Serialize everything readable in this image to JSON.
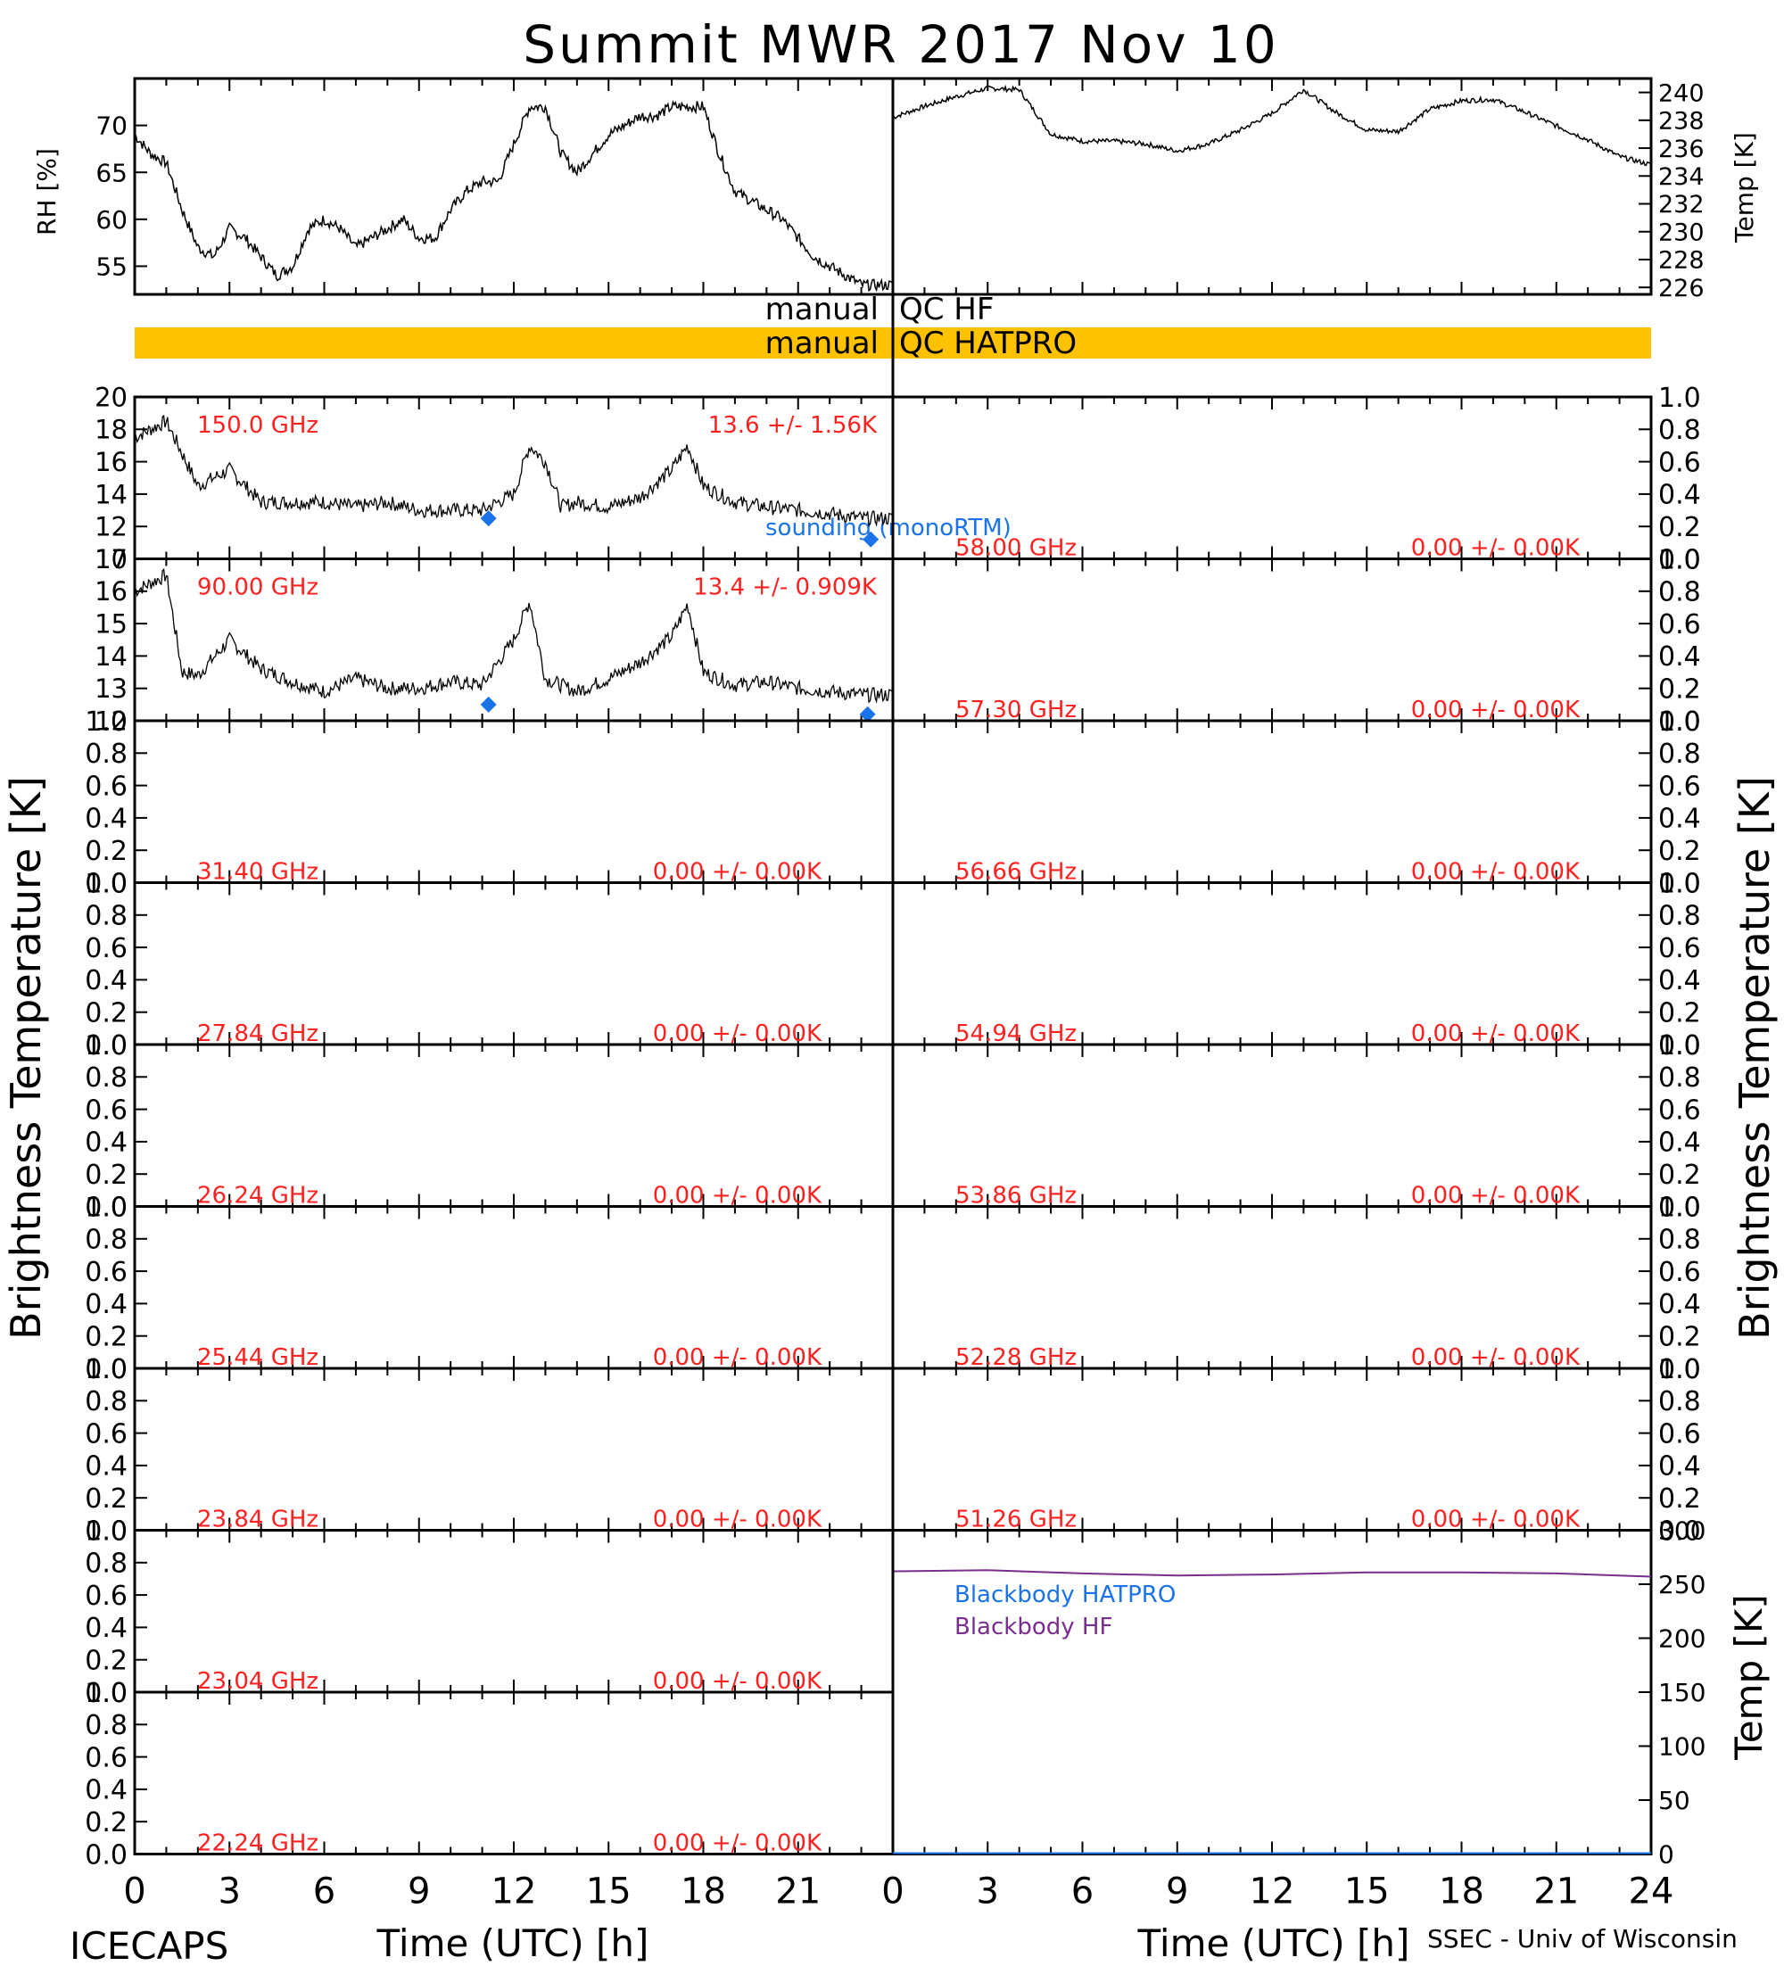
{
  "figure": {
    "title": "Summit MWR 2017 Nov 10",
    "footer_left": "ICECAPS",
    "footer_right": "SSEC - Univ of Wisconsin",
    "xlabel": "Time (UTC) [h]",
    "x_ticks": [
      "0",
      "3",
      "6",
      "9",
      "12",
      "15",
      "18",
      "21",
      "0",
      "3",
      "6",
      "9",
      "12",
      "15",
      "18",
      "21",
      "24"
    ],
    "bt_label": "Brightness Temperature [K]",
    "colors": {
      "annotation": "#ff2020",
      "sounding": "#1a73e8",
      "qc_bar": "#ffc200",
      "hf": "#7a2e8e",
      "hatpro": "#1a73e8",
      "trace": "#000000"
    }
  },
  "qc": {
    "hf_label_left": "manual",
    "hf_label_right": "QC HF",
    "hatpro_label_left": "manual",
    "hatpro_label_right": "QC HATPRO"
  },
  "legends": {
    "sounding": "sounding (monoRTM)",
    "bb_hatpro": "Blackbody HATPRO",
    "bb_hf": "Blackbody HF"
  },
  "chart_data": [
    {
      "type": "line",
      "panel": "relative-humidity",
      "ylabel": "RH [%]",
      "xlim": [
        0,
        24
      ],
      "ylim": [
        52,
        75
      ],
      "y_ticks": [
        "55",
        "60",
        "65",
        "70"
      ],
      "x": [
        0,
        0.5,
        1,
        1.5,
        2,
        2.5,
        3,
        3.5,
        4,
        4.5,
        5,
        5.5,
        6,
        6.5,
        7,
        7.5,
        8,
        8.5,
        9,
        9.5,
        10,
        10.5,
        11,
        11.5,
        12,
        12.5,
        13,
        13.5,
        14,
        14.5,
        15,
        15.5,
        16,
        16.5,
        17,
        17.5,
        18,
        18.5,
        19,
        19.5,
        20,
        20.5,
        21,
        21.5,
        22,
        22.5,
        23,
        23.5,
        24
      ],
      "y": [
        69,
        67,
        66,
        61,
        57,
        56,
        59,
        58,
        56,
        54,
        55,
        59,
        60,
        59,
        57,
        58,
        59,
        60,
        58,
        58,
        61,
        63,
        64,
        64,
        68,
        72,
        72,
        67,
        65,
        67,
        69,
        70,
        71,
        71,
        72,
        72,
        72,
        67,
        63,
        62,
        61,
        60,
        58,
        56,
        55,
        54,
        53,
        53,
        53
      ]
    },
    {
      "type": "line",
      "panel": "air-temperature",
      "ylabel": "Temp [K]",
      "xlim": [
        0,
        24
      ],
      "ylim": [
        225.5,
        241
      ],
      "y_ticks": [
        "226",
        "228",
        "230",
        "232",
        "234",
        "236",
        "238",
        "240"
      ],
      "x": [
        0,
        1,
        2,
        3,
        4,
        4.5,
        5,
        6,
        7,
        8,
        9,
        10,
        11,
        12,
        13,
        14,
        15,
        16,
        17,
        18,
        19,
        20,
        21,
        22,
        23,
        24
      ],
      "y": [
        238.2,
        239,
        239.7,
        240.3,
        240.2,
        238.6,
        237,
        236.5,
        236.5,
        236.3,
        235.8,
        236.3,
        237.3,
        238.5,
        240.2,
        238.6,
        237.3,
        237.2,
        238.8,
        239.4,
        239.5,
        238.6,
        237.6,
        236.6,
        235.4,
        234.8
      ]
    },
    {
      "type": "line",
      "panel": "bt-150",
      "channel": "150.0 GHz",
      "stat": "13.6 +/- 1.56K",
      "xlim": [
        0,
        24
      ],
      "ylim": [
        10,
        20
      ],
      "y_ticks": [
        "10",
        "12",
        "14",
        "16",
        "18",
        "20"
      ],
      "x": [
        0,
        1,
        2,
        3,
        4,
        5,
        6,
        7,
        8,
        9,
        10,
        11,
        12,
        12.5,
        13,
        13.5,
        14,
        15,
        16,
        17,
        17.5,
        18,
        19,
        20,
        21,
        22,
        23,
        24
      ],
      "y": [
        17.5,
        18.5,
        14.5,
        15.5,
        13.5,
        13.5,
        13.5,
        13.2,
        13.5,
        13,
        13,
        13,
        14,
        17,
        16,
        13.2,
        13.5,
        13.2,
        13.8,
        15.5,
        17,
        14.5,
        13.5,
        13.2,
        13,
        12.8,
        12.5,
        12.5
      ],
      "sounding": [
        {
          "x": 11.2,
          "y": 12.5
        },
        {
          "x": 23.3,
          "y": 11.2
        }
      ]
    },
    {
      "type": "line",
      "panel": "bt-90",
      "channel": "90.00 GHz",
      "stat": "13.4 +/- 0.909K",
      "xlim": [
        0,
        24
      ],
      "ylim": [
        12,
        17
      ],
      "y_ticks": [
        "12",
        "13",
        "14",
        "15",
        "16",
        "17"
      ],
      "x": [
        0,
        1,
        1.5,
        2,
        3,
        4,
        5,
        6,
        7,
        8,
        9,
        10,
        11,
        12,
        12.5,
        13,
        14,
        15,
        16,
        17,
        17.5,
        18,
        19,
        20,
        21,
        22,
        23,
        24
      ],
      "y": [
        16,
        16.5,
        13.5,
        13.4,
        14.5,
        13.6,
        13.2,
        12.9,
        13.3,
        13,
        13,
        13.2,
        13.1,
        14.5,
        15.7,
        13.3,
        12.9,
        13.3,
        13.8,
        14.6,
        15.6,
        13.5,
        13.1,
        13.2,
        13,
        12.9,
        12.8,
        12.8
      ],
      "sounding": [
        {
          "x": 11.2,
          "y": 12.5
        },
        {
          "x": 23.2,
          "y": 12.2
        }
      ]
    },
    {
      "type": "line",
      "panel": "bt-31.40",
      "channel": "31.40 GHz",
      "stat": "0.00 +/- 0.00K",
      "ylim": [
        0,
        1
      ],
      "y_ticks": [
        "0.0",
        "0.2",
        "0.4",
        "0.6",
        "0.8",
        "1.0"
      ]
    },
    {
      "type": "line",
      "panel": "bt-27.84",
      "channel": "27.84 GHz",
      "stat": "0.00 +/- 0.00K",
      "ylim": [
        0,
        1
      ],
      "y_ticks": [
        "0.0",
        "0.2",
        "0.4",
        "0.6",
        "0.8",
        "1.0"
      ]
    },
    {
      "type": "line",
      "panel": "bt-26.24",
      "channel": "26.24 GHz",
      "stat": "0.00 +/- 0.00K",
      "ylim": [
        0,
        1
      ],
      "y_ticks": [
        "0.0",
        "0.2",
        "0.4",
        "0.6",
        "0.8",
        "1.0"
      ]
    },
    {
      "type": "line",
      "panel": "bt-25.44",
      "channel": "25.44 GHz",
      "stat": "0.00 +/- 0.00K",
      "ylim": [
        0,
        1
      ],
      "y_ticks": [
        "0.0",
        "0.2",
        "0.4",
        "0.6",
        "0.8",
        "1.0"
      ]
    },
    {
      "type": "line",
      "panel": "bt-23.84",
      "channel": "23.84 GHz",
      "stat": "0.00 +/- 0.00K",
      "ylim": [
        0,
        1
      ],
      "y_ticks": [
        "0.0",
        "0.2",
        "0.4",
        "0.6",
        "0.8",
        "1.0"
      ]
    },
    {
      "type": "line",
      "panel": "bt-23.04",
      "channel": "23.04 GHz",
      "stat": "0.00 +/- 0.00K",
      "ylim": [
        0,
        1
      ],
      "y_ticks": [
        "0.0",
        "0.2",
        "0.4",
        "0.6",
        "0.8",
        "1.0"
      ]
    },
    {
      "type": "line",
      "panel": "bt-22.24",
      "channel": "22.24 GHz",
      "stat": "0.00 +/- 0.00K",
      "ylim": [
        0,
        1
      ],
      "y_ticks": [
        "0.0",
        "0.2",
        "0.4",
        "0.6",
        "0.8",
        "1.0"
      ]
    },
    {
      "type": "line",
      "panel": "bt-58.00",
      "channel": "58.00 GHz",
      "stat": "0.00 +/- 0.00K",
      "ylim": [
        0,
        1
      ],
      "y_ticks": [
        "0.0",
        "0.2",
        "0.4",
        "0.6",
        "0.8",
        "1.0"
      ]
    },
    {
      "type": "line",
      "panel": "bt-57.30",
      "channel": "57.30 GHz",
      "stat": "0.00 +/- 0.00K",
      "ylim": [
        0,
        1
      ],
      "y_ticks": [
        "0.0",
        "0.2",
        "0.4",
        "0.6",
        "0.8",
        "1.0"
      ]
    },
    {
      "type": "line",
      "panel": "bt-56.66",
      "channel": "56.66 GHz",
      "stat": "0.00 +/- 0.00K",
      "ylim": [
        0,
        1
      ],
      "y_ticks": [
        "0.0",
        "0.2",
        "0.4",
        "0.6",
        "0.8",
        "1.0"
      ]
    },
    {
      "type": "line",
      "panel": "bt-54.94",
      "channel": "54.94 GHz",
      "stat": "0.00 +/- 0.00K",
      "ylim": [
        0,
        1
      ],
      "y_ticks": [
        "0.0",
        "0.2",
        "0.4",
        "0.6",
        "0.8",
        "1.0"
      ]
    },
    {
      "type": "line",
      "panel": "bt-53.86",
      "channel": "53.86 GHz",
      "stat": "0.00 +/- 0.00K",
      "ylim": [
        0,
        1
      ],
      "y_ticks": [
        "0.0",
        "0.2",
        "0.4",
        "0.6",
        "0.8",
        "1.0"
      ]
    },
    {
      "type": "line",
      "panel": "bt-52.28",
      "channel": "52.28 GHz",
      "stat": "0.00 +/- 0.00K",
      "ylim": [
        0,
        1
      ],
      "y_ticks": [
        "0.0",
        "0.2",
        "0.4",
        "0.6",
        "0.8",
        "1.0"
      ]
    },
    {
      "type": "line",
      "panel": "bt-51.26",
      "channel": "51.26 GHz",
      "stat": "0.00 +/- 0.00K",
      "ylim": [
        0,
        1
      ],
      "y_ticks": [
        "0.0",
        "0.2",
        "0.4",
        "0.6",
        "0.8",
        "1.0"
      ]
    },
    {
      "type": "line",
      "panel": "blackbody-temperature",
      "ylabel": "Temp [K]",
      "xlim": [
        0,
        24
      ],
      "ylim": [
        0,
        300
      ],
      "y_ticks": [
        "0",
        "50",
        "100",
        "150",
        "200",
        "250",
        "300"
      ],
      "series": [
        {
          "name": "Blackbody HATPRO",
          "x": [
            0,
            24
          ],
          "y": [
            0,
            0
          ]
        },
        {
          "name": "Blackbody HF",
          "x": [
            0,
            3,
            6,
            9,
            12,
            15,
            18,
            21,
            24
          ],
          "y": [
            262,
            263,
            260,
            258,
            259,
            261,
            261,
            260,
            257
          ]
        }
      ]
    }
  ]
}
